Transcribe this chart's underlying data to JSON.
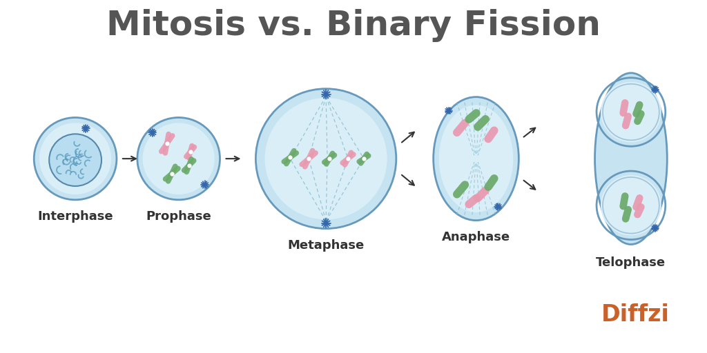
{
  "title": "Mitosis vs. Binary Fission",
  "title_color": "#555555",
  "title_fontsize": 36,
  "background_color": "#ffffff",
  "cell_outer_color": "#c5e3f0",
  "cell_inner_color": "#daeef8",
  "cell_edge_color": "#6699bb",
  "nucleus_color": "#b8ddf0",
  "nucleus_edge": "#5588aa",
  "chromosome_pink": "#e899b0",
  "chromosome_green": "#6aaa6a",
  "spindle_color": "#88bbcc",
  "labels": [
    "Interphase",
    "Prophase",
    "Metaphase",
    "Anaphase",
    "Telophase"
  ],
  "label_fontsize": 13,
  "label_color": "#333333",
  "diffzi_color": "#c8622a",
  "star_color": "#3366aa",
  "arrow_color": "#333333"
}
